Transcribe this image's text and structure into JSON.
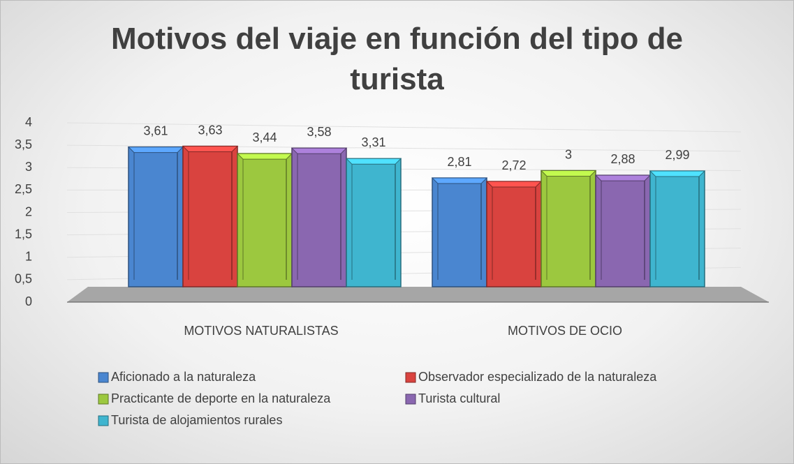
{
  "chart_data": {
    "type": "bar3d",
    "title": "Motivos del viaje en función del tipo de turista",
    "categories": [
      "MOTIVOS NATURALISTAS",
      "MOTIVOS DE OCIO"
    ],
    "series": [
      {
        "name": "Aficionado a la naturaleza",
        "color": "#4a86d0",
        "values": [
          3.61,
          2.81
        ],
        "value_labels": [
          "3,61",
          "2,81"
        ]
      },
      {
        "name": "Observador especializado de la naturaleza",
        "color": "#d9433f",
        "values": [
          3.63,
          2.72
        ],
        "value_labels": [
          "3,63",
          "2,72"
        ]
      },
      {
        "name": "Practicante de deporte en la naturaleza",
        "color": "#9cc83f",
        "values": [
          3.44,
          3
        ],
        "value_labels": [
          "3,44",
          "3"
        ]
      },
      {
        "name": "Turista cultural",
        "color": "#8a67b0",
        "values": [
          3.58,
          2.88
        ],
        "value_labels": [
          "3,58",
          "2,88"
        ]
      },
      {
        "name": "Turista de alojamientos rurales",
        "color": "#3fb5cf",
        "values": [
          3.31,
          2.99
        ],
        "value_labels": [
          "3,31",
          "2,99"
        ]
      }
    ],
    "ylim": [
      0,
      4
    ],
    "yticks": [
      0,
      {
        "value": 0.5,
        "label": "0,5"
      },
      1,
      {
        "value": 1.5,
        "label": "1,5"
      },
      2,
      {
        "value": 2.5,
        "label": "2,5"
      },
      3,
      {
        "value": 3.5,
        "label": "3,5"
      },
      4
    ],
    "grid": true
  }
}
